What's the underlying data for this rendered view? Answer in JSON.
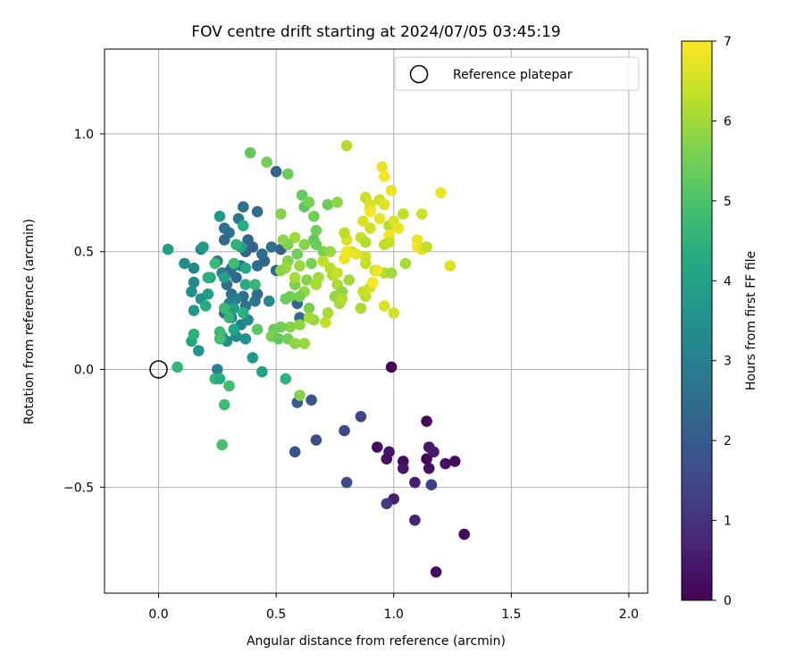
{
  "chart_data": {
    "type": "scatter",
    "title": "FOV centre drift starting at 2024/07/05 03:45:19",
    "xlabel": "Angular distance from reference (arcmin)",
    "ylabel": "Rotation from reference (arcmin)",
    "xlim": [
      -0.23,
      2.08
    ],
    "ylim": [
      -0.95,
      1.36
    ],
    "xticks": [
      0.0,
      0.5,
      1.0,
      1.5,
      2.0
    ],
    "xtick_labels": [
      "0.0",
      "0.5",
      "1.0",
      "1.5",
      "2.0"
    ],
    "yticks": [
      -0.5,
      0.0,
      0.5,
      1.0
    ],
    "ytick_labels": [
      "−0.5",
      "0.0",
      "0.5",
      "1.0"
    ],
    "grid": true,
    "legend": {
      "placement": "top-right",
      "entries": [
        "Reference platepar"
      ]
    },
    "reference_point": {
      "x": 0.0,
      "y": 0.0
    },
    "colorbar": {
      "label": "Hours from first FF file",
      "min": 0,
      "max": 7,
      "ticks": [
        0,
        1,
        2,
        3,
        4,
        5,
        6,
        7
      ],
      "tick_labels": [
        "0",
        "1",
        "2",
        "3",
        "4",
        "5",
        "6",
        "7"
      ],
      "colormap": "viridis"
    },
    "points": [
      [
        0.99,
        0.01,
        0.05
      ],
      [
        1.14,
        -0.22,
        0.15
      ],
      [
        0.93,
        -0.33,
        0.25
      ],
      [
        0.97,
        -0.38,
        0.3
      ],
      [
        0.98,
        -0.35,
        0.35
      ],
      [
        1.04,
        -0.39,
        0.2
      ],
      [
        1.04,
        -0.42,
        0.4
      ],
      [
        1.14,
        -0.38,
        0.1
      ],
      [
        1.15,
        -0.33,
        0.45
      ],
      [
        1.17,
        -0.35,
        0.5
      ],
      [
        1.15,
        -0.42,
        0.3
      ],
      [
        1.22,
        -0.4,
        0.35
      ],
      [
        1.26,
        -0.39,
        0.2
      ],
      [
        1.09,
        -0.48,
        0.6
      ],
      [
        1.0,
        -0.55,
        0.55
      ],
      [
        0.97,
        -0.57,
        1.2
      ],
      [
        1.09,
        -0.64,
        0.7
      ],
      [
        1.3,
        -0.7,
        0.15
      ],
      [
        1.18,
        -0.86,
        0.25
      ],
      [
        1.16,
        -0.49,
        1.3
      ],
      [
        0.86,
        -0.2,
        1.4
      ],
      [
        0.79,
        -0.26,
        1.5
      ],
      [
        0.8,
        -0.48,
        1.6
      ],
      [
        0.67,
        -0.3,
        1.7
      ],
      [
        0.58,
        -0.35,
        1.8
      ],
      [
        0.65,
        -0.13,
        1.9
      ],
      [
        0.59,
        -0.14,
        2.0
      ],
      [
        0.5,
        0.84,
        2.2
      ],
      [
        0.59,
        0.28,
        2.3
      ],
      [
        0.6,
        0.22,
        2.4
      ],
      [
        0.52,
        0.51,
        2.1
      ],
      [
        0.55,
        0.46,
        2.2
      ],
      [
        0.5,
        0.42,
        2.5
      ],
      [
        0.48,
        0.52,
        2.6
      ],
      [
        0.42,
        0.44,
        2.4
      ],
      [
        0.38,
        0.55,
        2.3
      ],
      [
        0.42,
        0.67,
        2.5
      ],
      [
        0.36,
        0.69,
        2.7
      ],
      [
        0.34,
        0.64,
        2.8
      ],
      [
        0.3,
        0.58,
        2.6
      ],
      [
        0.28,
        0.6,
        2.5
      ],
      [
        0.28,
        0.55,
        2.4
      ],
      [
        0.37,
        0.5,
        2.3
      ],
      [
        0.4,
        0.52,
        2.2
      ],
      [
        0.45,
        0.46,
        2.3
      ],
      [
        0.44,
        0.49,
        2.5
      ],
      [
        0.35,
        0.44,
        2.6
      ],
      [
        0.33,
        0.39,
        2.4
      ],
      [
        0.31,
        0.43,
        2.7
      ],
      [
        0.29,
        0.41,
        2.2
      ],
      [
        0.27,
        0.41,
        2.9
      ],
      [
        0.25,
        0.46,
        2.8
      ],
      [
        0.29,
        0.36,
        2.5
      ],
      [
        0.31,
        0.32,
        2.6
      ],
      [
        0.36,
        0.31,
        2.7
      ],
      [
        0.41,
        0.29,
        2.8
      ],
      [
        0.42,
        0.32,
        2.4
      ],
      [
        0.37,
        0.27,
        2.6
      ],
      [
        0.33,
        0.3,
        2.9
      ],
      [
        0.3,
        0.28,
        3.0
      ],
      [
        0.28,
        0.24,
        2.5
      ],
      [
        0.31,
        0.22,
        2.8
      ],
      [
        0.35,
        0.19,
        3.1
      ],
      [
        0.38,
        0.21,
        3.2
      ],
      [
        0.33,
        0.14,
        3.3
      ],
      [
        0.29,
        0.12,
        3.4
      ],
      [
        0.27,
        0.14,
        3.6
      ],
      [
        0.37,
        0.13,
        3.5
      ],
      [
        0.47,
        0.29,
        3.3
      ],
      [
        0.4,
        0.05,
        3.7
      ],
      [
        0.44,
        -0.01,
        4.0
      ],
      [
        0.25,
        0.0,
        3.0
      ],
      [
        0.15,
        0.43,
        3.2
      ],
      [
        0.15,
        0.37,
        3.3
      ],
      [
        0.14,
        0.33,
        3.5
      ],
      [
        0.18,
        0.3,
        3.6
      ],
      [
        0.11,
        0.45,
        3.4
      ],
      [
        0.18,
        0.51,
        3.1
      ],
      [
        0.19,
        0.52,
        3.8
      ],
      [
        0.17,
        0.08,
        3.6
      ],
      [
        0.14,
        0.12,
        4.2
      ],
      [
        0.15,
        0.15,
        4.5
      ],
      [
        0.2,
        0.27,
        4.3
      ],
      [
        0.21,
        0.32,
        3.9
      ],
      [
        0.22,
        0.39,
        4.1
      ],
      [
        0.26,
        0.65,
        3.8
      ],
      [
        0.35,
        0.52,
        4.0
      ],
      [
        0.36,
        0.61,
        4.4
      ],
      [
        0.33,
        0.53,
        4.5
      ],
      [
        0.37,
        0.43,
        4.2
      ],
      [
        0.32,
        0.45,
        4.8
      ],
      [
        0.28,
        0.39,
        4.0
      ],
      [
        0.32,
        0.26,
        3.9
      ],
      [
        0.36,
        0.24,
        4.4
      ],
      [
        0.3,
        0.22,
        4.6
      ],
      [
        0.32,
        0.17,
        4.2
      ],
      [
        0.26,
        0.16,
        4.8
      ],
      [
        0.28,
        0.26,
        4.7
      ],
      [
        0.37,
        0.36,
        4.3
      ],
      [
        0.41,
        0.36,
        4.6
      ],
      [
        0.15,
        0.25,
        3.7
      ],
      [
        0.24,
        0.45,
        4.7
      ],
      [
        0.21,
        0.39,
        4.4
      ],
      [
        0.04,
        0.51,
        3.9
      ],
      [
        0.08,
        0.01,
        4.6
      ],
      [
        0.24,
        -0.04,
        4.6
      ],
      [
        0.26,
        -0.04,
        4.3
      ],
      [
        0.3,
        -0.07,
        4.8
      ],
      [
        0.28,
        -0.15,
        4.8
      ],
      [
        0.27,
        -0.32,
        4.9
      ],
      [
        0.54,
        -0.04,
        4.5
      ],
      [
        0.26,
        0.13,
        4.9
      ],
      [
        0.39,
        0.92,
        5.3
      ],
      [
        0.46,
        0.88,
        5.5
      ],
      [
        0.55,
        0.83,
        5.4
      ],
      [
        0.61,
        0.74,
        5.3
      ],
      [
        0.62,
        0.69,
        5.2
      ],
      [
        0.66,
        0.65,
        5.5
      ],
      [
        0.52,
        0.66,
        5.7
      ],
      [
        0.64,
        0.71,
        5.6
      ],
      [
        0.72,
        0.7,
        5.4
      ],
      [
        0.76,
        0.71,
        5.8
      ],
      [
        0.67,
        0.59,
        5.5
      ],
      [
        0.66,
        0.55,
        5.3
      ],
      [
        0.67,
        0.53,
        5.4
      ],
      [
        0.7,
        0.5,
        5.6
      ],
      [
        0.73,
        0.5,
        5.9
      ],
      [
        0.62,
        0.53,
        5.7
      ],
      [
        0.58,
        0.56,
        6.0
      ],
      [
        0.55,
        0.53,
        5.6
      ],
      [
        0.53,
        0.55,
        5.8
      ],
      [
        0.59,
        0.49,
        5.5
      ],
      [
        0.55,
        0.46,
        5.7
      ],
      [
        0.6,
        0.44,
        5.9
      ],
      [
        0.54,
        0.43,
        6.0
      ],
      [
        0.52,
        0.42,
        5.8
      ],
      [
        0.58,
        0.36,
        5.6
      ],
      [
        0.63,
        0.38,
        5.7
      ],
      [
        0.62,
        0.33,
        5.9
      ],
      [
        0.6,
        0.31,
        5.5
      ],
      [
        0.56,
        0.31,
        5.6
      ],
      [
        0.54,
        0.3,
        5.4
      ],
      [
        0.58,
        0.39,
        6.1
      ],
      [
        0.65,
        0.45,
        5.6
      ],
      [
        0.68,
        0.39,
        6.0
      ],
      [
        0.74,
        0.4,
        6.2
      ],
      [
        0.76,
        0.36,
        6.1
      ],
      [
        0.78,
        0.33,
        5.8
      ],
      [
        0.75,
        0.31,
        5.9
      ],
      [
        0.77,
        0.28,
        6.0
      ],
      [
        0.78,
        0.3,
        6.2
      ],
      [
        0.72,
        0.24,
        6.1
      ],
      [
        0.66,
        0.21,
        5.9
      ],
      [
        0.64,
        0.26,
        5.6
      ],
      [
        0.6,
        0.19,
        5.8
      ],
      [
        0.56,
        0.18,
        5.7
      ],
      [
        0.52,
        0.18,
        5.5
      ],
      [
        0.49,
        0.17,
        5.4
      ],
      [
        0.48,
        0.14,
        5.6
      ],
      [
        0.51,
        0.13,
        5.3
      ],
      [
        0.42,
        0.17,
        5.2
      ],
      [
        0.55,
        0.13,
        5.5
      ],
      [
        0.58,
        0.11,
        5.8
      ],
      [
        0.62,
        0.11,
        5.9
      ],
      [
        0.64,
        0.22,
        6.0
      ],
      [
        0.71,
        0.2,
        6.3
      ],
      [
        0.67,
        0.36,
        6.1
      ],
      [
        0.73,
        0.43,
        6.2
      ],
      [
        0.7,
        0.46,
        6.3
      ],
      [
        0.76,
        0.41,
        6.4
      ],
      [
        0.81,
        0.38,
        6.0
      ],
      [
        0.86,
        0.26,
        6.1
      ],
      [
        0.88,
        0.31,
        6.3
      ],
      [
        0.87,
        0.33,
        6.4
      ],
      [
        0.9,
        0.35,
        6.5
      ],
      [
        0.92,
        0.42,
        6.4
      ],
      [
        0.96,
        0.41,
        6.2
      ],
      [
        0.88,
        0.48,
        6.5
      ],
      [
        0.88,
        0.45,
        6.4
      ],
      [
        0.82,
        0.5,
        6.5
      ],
      [
        0.8,
        0.55,
        6.6
      ],
      [
        0.79,
        0.58,
        6.3
      ],
      [
        0.86,
        0.56,
        6.4
      ],
      [
        0.88,
        0.54,
        6.2
      ],
      [
        0.9,
        0.6,
        6.5
      ],
      [
        0.87,
        0.63,
        6.6
      ],
      [
        0.9,
        0.68,
        6.4
      ],
      [
        0.94,
        0.64,
        6.7
      ],
      [
        0.96,
        0.53,
        6.3
      ],
      [
        0.98,
        0.61,
        6.2
      ],
      [
        1.0,
        0.63,
        6.6
      ],
      [
        1.04,
        0.66,
        6.3
      ],
      [
        1.05,
        0.45,
        6.1
      ],
      [
        0.99,
        0.41,
        6.0
      ],
      [
        0.96,
        0.27,
        6.6
      ],
      [
        1.0,
        0.24,
        6.5
      ],
      [
        0.88,
        0.73,
        6.4
      ],
      [
        0.9,
        0.7,
        6.6
      ],
      [
        0.94,
        0.72,
        6.5
      ],
      [
        0.96,
        0.7,
        6.7
      ],
      [
        0.99,
        0.76,
        6.8
      ],
      [
        0.96,
        0.82,
        6.9
      ],
      [
        0.95,
        0.86,
        6.8
      ],
      [
        0.8,
        0.95,
        6.2
      ],
      [
        0.6,
        -0.11,
        5.7
      ],
      [
        1.12,
        0.66,
        6.5
      ],
      [
        1.1,
        0.55,
        6.8
      ],
      [
        1.1,
        0.52,
        6.9
      ],
      [
        1.12,
        0.51,
        6.7
      ],
      [
        1.14,
        0.52,
        6.3
      ],
      [
        1.2,
        0.75,
        6.8
      ],
      [
        1.24,
        0.44,
        6.6
      ],
      [
        0.98,
        0.57,
        6.9
      ],
      [
        0.9,
        0.67,
        6.9
      ],
      [
        0.93,
        0.42,
        6.8
      ],
      [
        0.91,
        0.37,
        6.9
      ],
      [
        0.79,
        0.47,
        6.8
      ],
      [
        0.8,
        0.5,
        6.9
      ],
      [
        1.02,
        0.6,
        6.8
      ],
      [
        0.98,
        0.54,
        6.4
      ],
      [
        0.84,
        0.49,
        6.7
      ]
    ]
  }
}
